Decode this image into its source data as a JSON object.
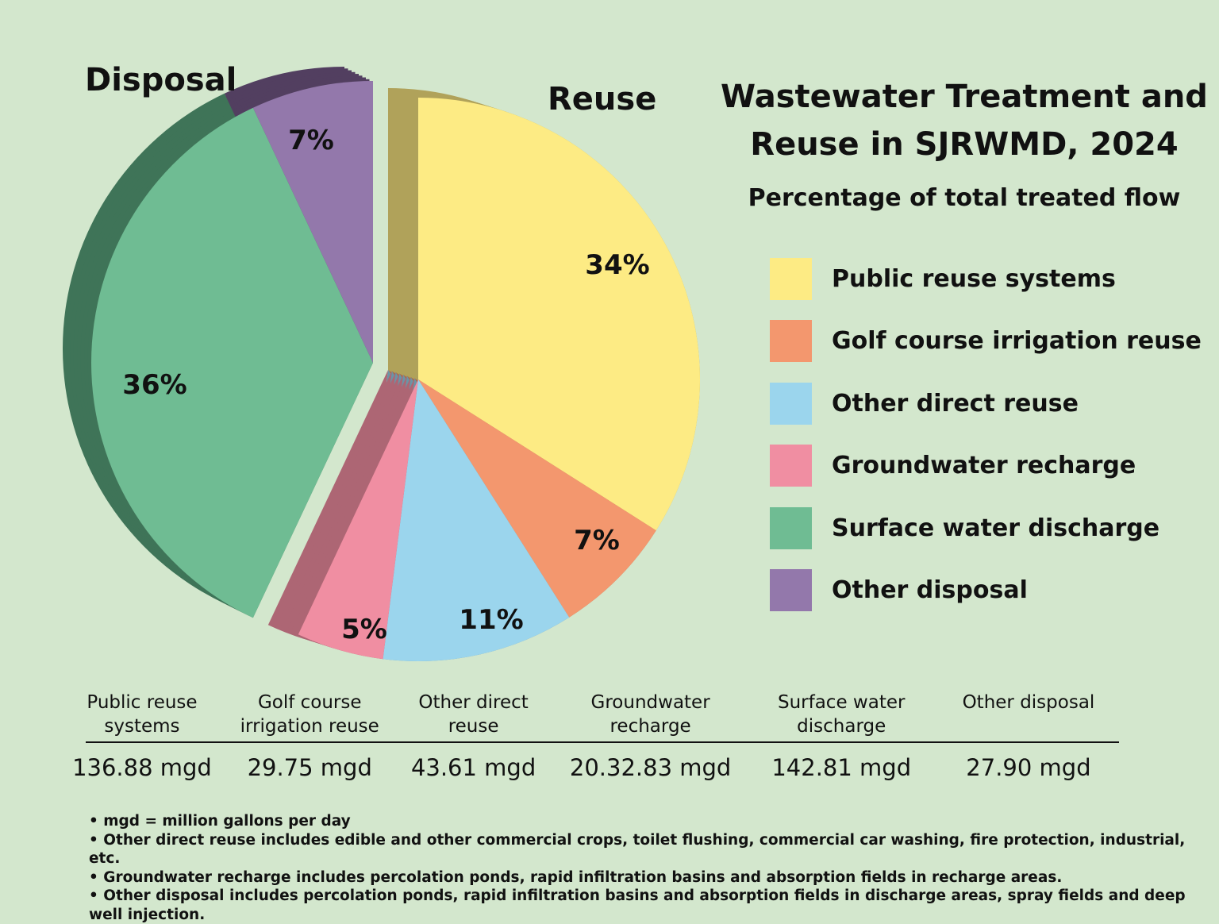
{
  "chart_data": {
    "type": "pie",
    "title": "Wastewater Treatment and Reuse in SJRWMD, 2024",
    "subtitle": "Percentage of total treated flow",
    "groups": [
      {
        "name": "Reuse",
        "slices": [
          0,
          1,
          2,
          3
        ]
      },
      {
        "name": "Disposal",
        "slices": [
          4,
          5
        ]
      }
    ],
    "slices": [
      {
        "label": "Public reuse systems",
        "value": 34,
        "data_label": "34%",
        "flow": "136.88 mgd",
        "color": "#fdeb84",
        "shade": "#b0a25a"
      },
      {
        "label": "Golf course irrigation reuse",
        "value": 7,
        "data_label": "7%",
        "flow": "29.75 mgd",
        "color": "#f3976e",
        "shade": "#a86a4c"
      },
      {
        "label": "Other direct reuse",
        "value": 11,
        "data_label": "11%",
        "flow": "43.61 mgd",
        "color": "#9bd5ed",
        "shade": "#6b95a6"
      },
      {
        "label": "Groundwater recharge",
        "value": 5,
        "data_label": "5%",
        "flow": "20.32.83 mgd",
        "color": "#f08ea2",
        "shade": "#ad6674"
      },
      {
        "label": "Surface water discharge",
        "value": 36,
        "data_label": "36%",
        "flow": "142.81 mgd",
        "color": "#6fbc93",
        "shade": "#3f7458"
      },
      {
        "label": "Other disposal",
        "value": 7,
        "data_label": "7%",
        "flow": "27.90 mgd",
        "color": "#9378ab",
        "shade": "#523f60"
      }
    ],
    "legend_position": "right"
  },
  "table": {
    "headers": [
      "Public reuse\nsystems",
      "Golf course\nirrigation reuse",
      "Other direct\nreuse",
      "Groundwater\nrecharge",
      "Surface water\ndischarge",
      "Other disposal"
    ]
  },
  "notes": [
    "• mgd = million gallons per day",
    "• Other direct reuse includes edible and other commercial crops, toilet flushing, commercial car washing, fire protection, industrial, etc.",
    "• Groundwater recharge includes percolation ponds, rapid infiltration basins and absorption fields in recharge areas.",
    "• Other disposal includes percolation ponds, rapid infiltration basins and absorption fields in discharge areas, spray fields and deep well injection."
  ]
}
